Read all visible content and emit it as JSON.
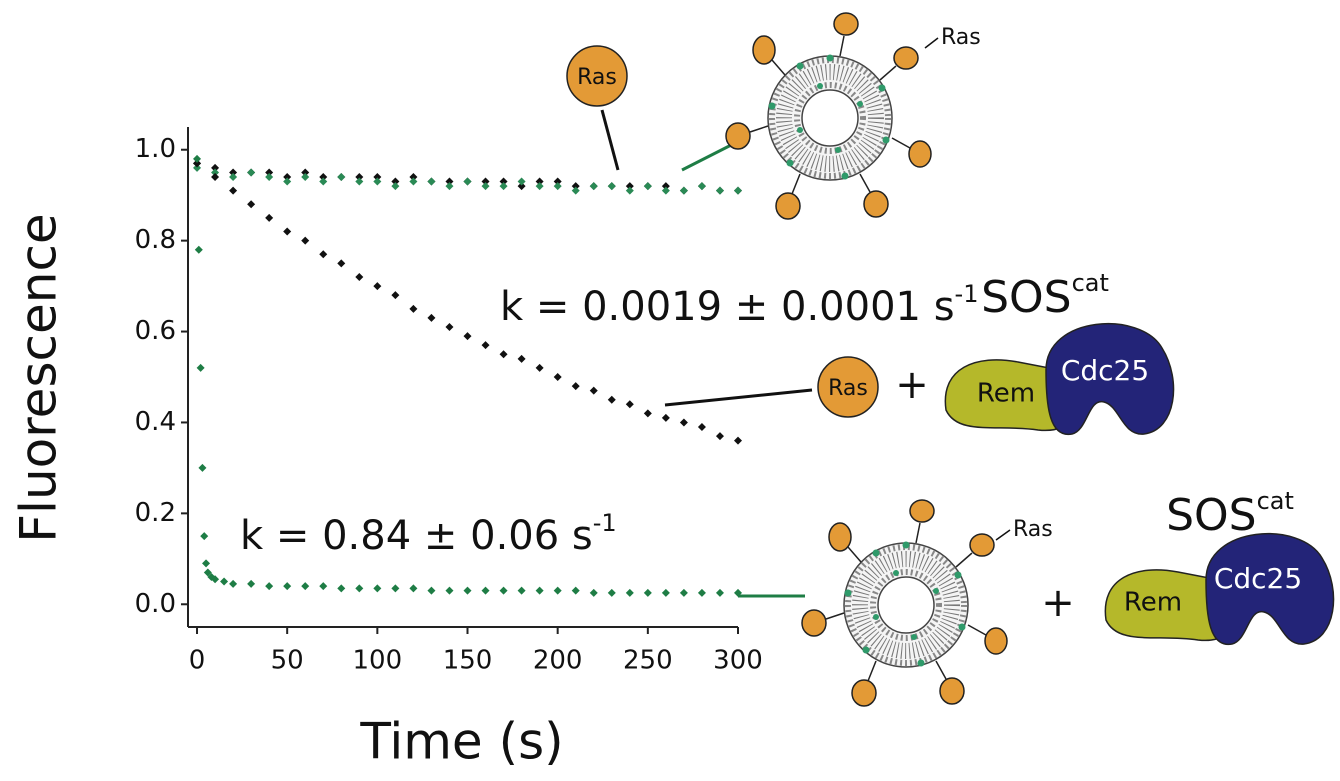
{
  "chart_data": {
    "type": "scatter",
    "xlabel": "Time (s)",
    "ylabel": "Fluorescence",
    "xlim": [
      -5,
      300
    ],
    "ylim": [
      -0.05,
      1.05
    ],
    "xticks": [
      0,
      50,
      100,
      150,
      200,
      250,
      300
    ],
    "yticks": [
      {
        "value": 0,
        "label": "0.0"
      },
      {
        "value": 0.2,
        "label": "0.2"
      },
      {
        "value": 0.4,
        "label": "0.4"
      },
      {
        "value": 0.6,
        "label": "0.6"
      },
      {
        "value": 0.8,
        "label": "0.8"
      },
      {
        "value": 1,
        "label": "1.0"
      }
    ],
    "series": [
      {
        "color": "#111111",
        "x": [
          0,
          10,
          20,
          30,
          40,
          50,
          60,
          70,
          80,
          90,
          100,
          110,
          120,
          130,
          140,
          150,
          160,
          170,
          180,
          190,
          200,
          210,
          220,
          230,
          240,
          250,
          260,
          270,
          280,
          290,
          300
        ],
        "values": [
          0.97,
          0.96,
          0.95,
          0.95,
          0.95,
          0.94,
          0.95,
          0.94,
          0.94,
          0.94,
          0.94,
          0.93,
          0.94,
          0.93,
          0.93,
          0.93,
          0.93,
          0.93,
          0.92,
          0.93,
          0.93,
          0.92,
          0.92,
          0.92,
          0.92,
          0.92,
          0.92,
          0.91,
          0.92,
          0.91,
          0.91
        ]
      },
      {
        "color": "#2a8a55",
        "x": [
          0,
          10,
          20,
          30,
          40,
          50,
          60,
          70,
          80,
          90,
          100,
          110,
          120,
          130,
          140,
          150,
          160,
          170,
          180,
          190,
          200,
          210,
          220,
          230,
          240,
          250,
          260,
          270,
          280,
          290,
          300
        ],
        "values": [
          0.96,
          0.95,
          0.94,
          0.95,
          0.94,
          0.93,
          0.94,
          0.93,
          0.94,
          0.93,
          0.93,
          0.92,
          0.93,
          0.93,
          0.92,
          0.93,
          0.92,
          0.92,
          0.93,
          0.92,
          0.92,
          0.91,
          0.92,
          0.92,
          0.91,
          0.92,
          0.91,
          0.91,
          0.92,
          0.91,
          0.91
        ]
      },
      {
        "color": "#111111",
        "x": [
          0,
          10,
          20,
          30,
          40,
          50,
          60,
          70,
          80,
          90,
          100,
          110,
          120,
          130,
          140,
          150,
          160,
          170,
          180,
          190,
          200,
          210,
          220,
          230,
          240,
          250,
          260,
          270,
          280,
          290,
          300
        ],
        "values": [
          0.97,
          0.94,
          0.91,
          0.88,
          0.85,
          0.82,
          0.8,
          0.77,
          0.75,
          0.72,
          0.7,
          0.68,
          0.65,
          0.63,
          0.61,
          0.59,
          0.57,
          0.55,
          0.54,
          0.52,
          0.5,
          0.48,
          0.47,
          0.45,
          0.44,
          0.42,
          0.41,
          0.4,
          0.39,
          0.37,
          0.36
        ]
      },
      {
        "color": "#1e7d45",
        "x": [
          0,
          1,
          2,
          3,
          4,
          5,
          6,
          8,
          10,
          15,
          20,
          30,
          40,
          50,
          60,
          70,
          80,
          90,
          100,
          110,
          120,
          130,
          140,
          150,
          160,
          170,
          180,
          190,
          200,
          210,
          220,
          230,
          240,
          250,
          260,
          270,
          280,
          290,
          300
        ],
        "values": [
          0.98,
          0.78,
          0.52,
          0.3,
          0.15,
          0.09,
          0.07,
          0.06,
          0.055,
          0.05,
          0.045,
          0.045,
          0.04,
          0.04,
          0.04,
          0.04,
          0.035,
          0.035,
          0.035,
          0.035,
          0.035,
          0.03,
          0.03,
          0.03,
          0.03,
          0.03,
          0.03,
          0.03,
          0.03,
          0.03,
          0.025,
          0.025,
          0.025,
          0.025,
          0.025,
          0.025,
          0.025,
          0.025,
          0.025
        ]
      }
    ],
    "annotations": [
      {
        "text": "k = 0.0019 ± 0.0001 s",
        "sup": "-1"
      },
      {
        "text": "k = 0.84 ± 0.06 s",
        "sup": "-1"
      }
    ]
  },
  "diagram": {
    "ras_ball_top": "Ras",
    "vesicle_top_ras": "Ras",
    "ras_ball_mid": "Ras",
    "plus_mid": "+",
    "sos_mid": {
      "name": "SOS",
      "sup": "cat"
    },
    "rem_mid": "Rem",
    "cdc25_mid": "Cdc25",
    "vesicle_bottom_ras": "Ras",
    "plus_bottom": "+",
    "sos_bottom": {
      "name": "SOS",
      "sup": "cat"
    },
    "rem_bottom": "Rem",
    "cdc25_bottom": "Cdc25"
  }
}
